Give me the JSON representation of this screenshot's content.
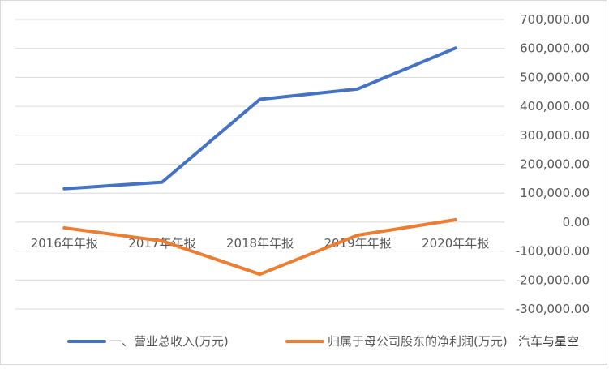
{
  "chart_data": {
    "type": "line",
    "categories": [
      "2016年年报",
      "2017年年报",
      "2018年年报",
      "2019年年报",
      "2020年年报"
    ],
    "series": [
      {
        "name": "一、营业总收入(万元)",
        "color": "#4472c4",
        "values": [
          115000,
          138000,
          424000,
          460000,
          601000
        ]
      },
      {
        "name": "归属于母公司股东的净利润(万元)",
        "color": "#ed7d31",
        "values": [
          -20000,
          -65000,
          -180000,
          -45000,
          8000
        ]
      }
    ],
    "yticks": [
      700000,
      600000,
      500000,
      400000,
      300000,
      200000,
      100000,
      0,
      -100000,
      -200000,
      -300000
    ],
    "ytick_labels": [
      "700,000.00",
      "600,000.00",
      "500,000.00",
      "400,000.00",
      "300,000.00",
      "200,000.00",
      "100,000.00",
      "0.00",
      "-100,000.00",
      "-200,000.00",
      "-300,000.00"
    ],
    "ylim": [
      -300000,
      700000
    ],
    "axis_position": "right",
    "grid": true,
    "legend_position": "bottom",
    "title": "",
    "xlabel": "",
    "ylabel": ""
  },
  "watermark": {
    "text": "汽车与星空"
  }
}
